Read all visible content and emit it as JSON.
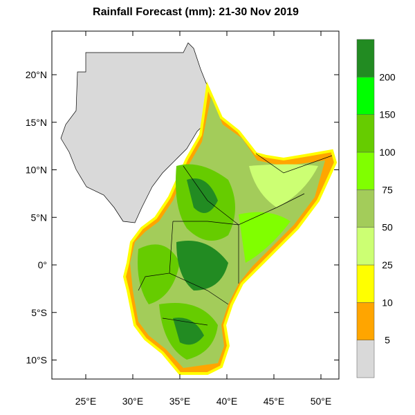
{
  "title": "Rainfall Forecast (mm): 21-30 Nov 2019",
  "x_ticks": [
    {
      "label": "25°E",
      "lon": 25
    },
    {
      "label": "30°E",
      "lon": 30
    },
    {
      "label": "35°E",
      "lon": 35
    },
    {
      "label": "40°E",
      "lon": 40
    },
    {
      "label": "45°E",
      "lon": 45
    },
    {
      "label": "50°E",
      "lon": 50
    }
  ],
  "y_ticks": [
    {
      "label": "20°N",
      "lat": 20
    },
    {
      "label": "15°N",
      "lat": 15
    },
    {
      "label": "10°N",
      "lat": 10
    },
    {
      "label": "5°N",
      "lat": 5
    },
    {
      "label": "0°",
      "lat": 0
    },
    {
      "label": "5°S",
      "lat": -5
    },
    {
      "label": "10°S",
      "lat": -10
    }
  ],
  "colorbar": {
    "labels": [
      "5",
      "10",
      "25",
      "50",
      "75",
      "100",
      "150",
      "200"
    ],
    "colors": [
      "#d9d9d9",
      "#ffa500",
      "#ffff00",
      "#ccff73",
      "#a3cc5a",
      "#80ff00",
      "#66cc00",
      "#00ff00",
      "#228b22"
    ]
  }
}
